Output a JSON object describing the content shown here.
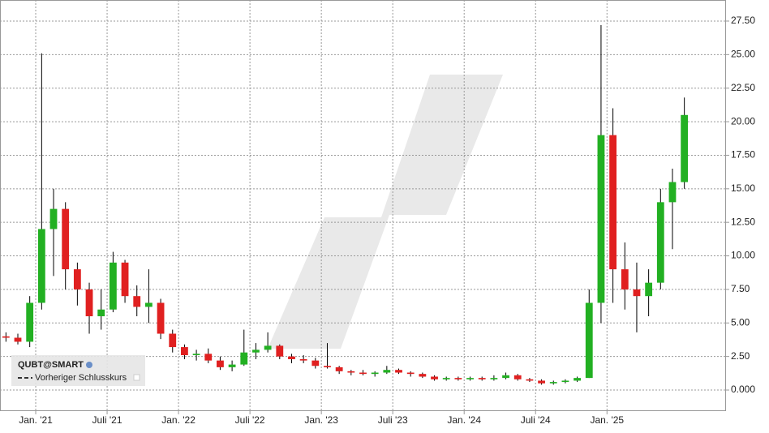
{
  "chart_data": {
    "type": "candlestick",
    "legend": [
      "QUBT@SMART",
      "Vorheriger Schlusskurs"
    ],
    "up_color": "#22b022",
    "down_color": "#e02020",
    "wick_color": "#000000",
    "grid": true,
    "x": [
      "2020-10",
      "2020-11",
      "2020-12",
      "2021-01",
      "2021-02",
      "2021-03",
      "2021-04",
      "2021-05",
      "2021-06",
      "2021-07",
      "2021-08",
      "2021-09",
      "2021-10",
      "2021-11",
      "2021-12",
      "2022-01",
      "2022-02",
      "2022-03",
      "2022-04",
      "2022-05",
      "2022-06",
      "2022-07",
      "2022-08",
      "2022-09",
      "2022-10",
      "2022-11",
      "2022-12",
      "2023-01",
      "2023-02",
      "2023-03",
      "2023-04",
      "2023-05",
      "2023-06",
      "2023-07",
      "2023-08",
      "2023-09",
      "2023-10",
      "2023-11",
      "2023-12",
      "2024-01",
      "2024-02",
      "2024-03",
      "2024-04",
      "2024-05",
      "2024-06",
      "2024-07",
      "2024-08",
      "2024-09",
      "2024-10",
      "2024-11",
      "2024-12",
      "2025-01",
      "2025-02",
      "2025-03",
      "2025-04",
      "2025-05",
      "2025-06",
      "2025-07"
    ],
    "open": [
      4.0,
      3.9,
      3.6,
      6.5,
      12.0,
      13.5,
      9.0,
      7.5,
      5.5,
      6.0,
      9.5,
      7.0,
      6.2,
      6.5,
      4.2,
      3.2,
      2.6,
      2.7,
      2.2,
      1.7,
      1.9,
      2.8,
      3.0,
      3.3,
      2.5,
      2.3,
      2.2,
      1.8,
      1.7,
      1.4,
      1.3,
      1.2,
      1.3,
      1.5,
      1.3,
      1.2,
      1.0,
      0.8,
      0.9,
      0.8,
      0.9,
      0.8,
      0.9,
      1.1,
      0.8,
      0.7,
      0.5,
      0.6,
      0.7,
      0.9,
      6.5,
      19.0,
      9.0,
      7.5,
      7.0,
      8.0,
      14.0,
      15.5
    ],
    "high": [
      4.3,
      4.2,
      7.0,
      25.1,
      15.0,
      14.0,
      9.5,
      8.0,
      7.5,
      10.3,
      9.7,
      7.8,
      9.0,
      6.8,
      4.5,
      3.4,
      3.0,
      3.1,
      2.5,
      2.2,
      4.5,
      3.5,
      4.3,
      3.4,
      2.7,
      2.6,
      2.4,
      3.5,
      1.8,
      1.5,
      1.5,
      1.4,
      1.8,
      1.6,
      1.4,
      1.3,
      1.1,
      1.0,
      1.0,
      1.0,
      1.0,
      1.1,
      1.3,
      1.2,
      0.9,
      0.8,
      0.7,
      0.8,
      1.0,
      7.5,
      27.2,
      21.0,
      11.0,
      9.5,
      9.0,
      15.0,
      16.5,
      21.8
    ],
    "low": [
      3.6,
      3.4,
      3.2,
      6.0,
      8.5,
      7.5,
      6.3,
      4.2,
      4.5,
      5.8,
      6.5,
      5.5,
      5.0,
      3.8,
      2.8,
      2.3,
      2.2,
      2.0,
      1.5,
      1.4,
      1.8,
      2.3,
      2.8,
      2.3,
      2.0,
      2.0,
      1.6,
      1.6,
      1.2,
      1.1,
      1.1,
      1.0,
      1.2,
      1.2,
      1.0,
      0.9,
      0.7,
      0.7,
      0.7,
      0.7,
      0.7,
      0.7,
      0.8,
      0.7,
      0.6,
      0.4,
      0.4,
      0.5,
      0.6,
      0.9,
      5.0,
      6.5,
      6.0,
      4.3,
      5.5,
      7.5,
      10.5,
      15.0
    ],
    "close": [
      3.9,
      3.6,
      6.5,
      12.0,
      13.5,
      9.0,
      7.5,
      5.5,
      6.0,
      9.5,
      7.0,
      6.2,
      6.5,
      4.2,
      3.2,
      2.6,
      2.7,
      2.2,
      1.7,
      1.9,
      2.8,
      3.0,
      3.3,
      2.5,
      2.3,
      2.2,
      1.8,
      1.7,
      1.4,
      1.3,
      1.2,
      1.3,
      1.5,
      1.3,
      1.2,
      1.0,
      0.8,
      0.9,
      0.8,
      0.9,
      0.8,
      0.9,
      1.1,
      0.8,
      0.7,
      0.5,
      0.6,
      0.7,
      0.9,
      6.5,
      19.0,
      9.0,
      7.5,
      7.0,
      8.0,
      14.0,
      15.5,
      20.5
    ],
    "xlim": [
      "2020-10",
      "2025-10"
    ],
    "xticks": [
      {
        "value": "2021-01",
        "label": "Jan. '21"
      },
      {
        "value": "2021-07",
        "label": "Juli '21"
      },
      {
        "value": "2022-01",
        "label": "Jan. '22"
      },
      {
        "value": "2022-07",
        "label": "Juli '22"
      },
      {
        "value": "2023-01",
        "label": "Jan. '23"
      },
      {
        "value": "2023-07",
        "label": "Juli '23"
      },
      {
        "value": "2024-01",
        "label": "Jan. '24"
      },
      {
        "value": "2024-07",
        "label": "Juli '24"
      },
      {
        "value": "2025-01",
        "label": "Jan. '25"
      }
    ],
    "ylim": [
      -1.57,
      29.07
    ],
    "yticks": [
      {
        "value": 0,
        "label": "0.000"
      },
      {
        "value": 2.5,
        "label": "2.50"
      },
      {
        "value": 5,
        "label": "5.00"
      },
      {
        "value": 7.5,
        "label": "7.50"
      },
      {
        "value": 10,
        "label": "10.00"
      },
      {
        "value": 12.5,
        "label": "12.50"
      },
      {
        "value": 15,
        "label": "15.00"
      },
      {
        "value": 17.5,
        "label": "17.50"
      },
      {
        "value": 20,
        "label": "20.00"
      },
      {
        "value": 22.5,
        "label": "22.50"
      },
      {
        "value": 25,
        "label": "25.00"
      },
      {
        "value": 27.5,
        "label": "27.50"
      }
    ]
  }
}
